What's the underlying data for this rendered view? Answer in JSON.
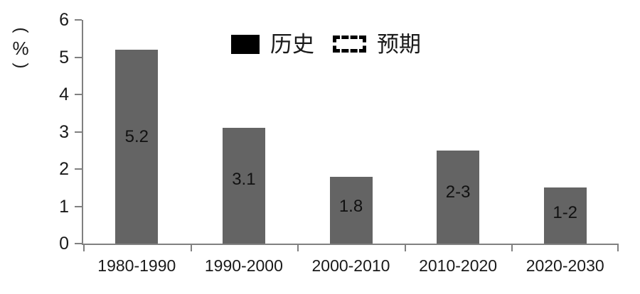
{
  "chart_data": {
    "type": "bar",
    "title": "",
    "categories": [
      "1980-1990",
      "1990-2000",
      "2000-2010",
      "2010-2020",
      "2020-2030"
    ],
    "values": [
      5.2,
      3.1,
      1.8,
      2.5,
      1.5
    ],
    "bar_labels": [
      "5.2",
      "3.1",
      "1.8",
      "2-3",
      "1-2"
    ],
    "ylabel": "（%）",
    "ylabel_chars": [
      "(",
      "%",
      ")"
    ],
    "ylim": [
      0,
      6
    ],
    "yticks": [
      0,
      1,
      2,
      3,
      4,
      5,
      6
    ],
    "grid": false,
    "legend_position": "top-center",
    "legend": [
      {
        "label": "历史",
        "swatch": "solid"
      },
      {
        "label": "预期",
        "swatch": "dashed"
      }
    ],
    "colors": {
      "bar": "#646464",
      "axis": "#808080",
      "text": "#1a1a1a",
      "legend_solid_fill": "#000000",
      "legend_dashed_border": "#000000"
    }
  }
}
